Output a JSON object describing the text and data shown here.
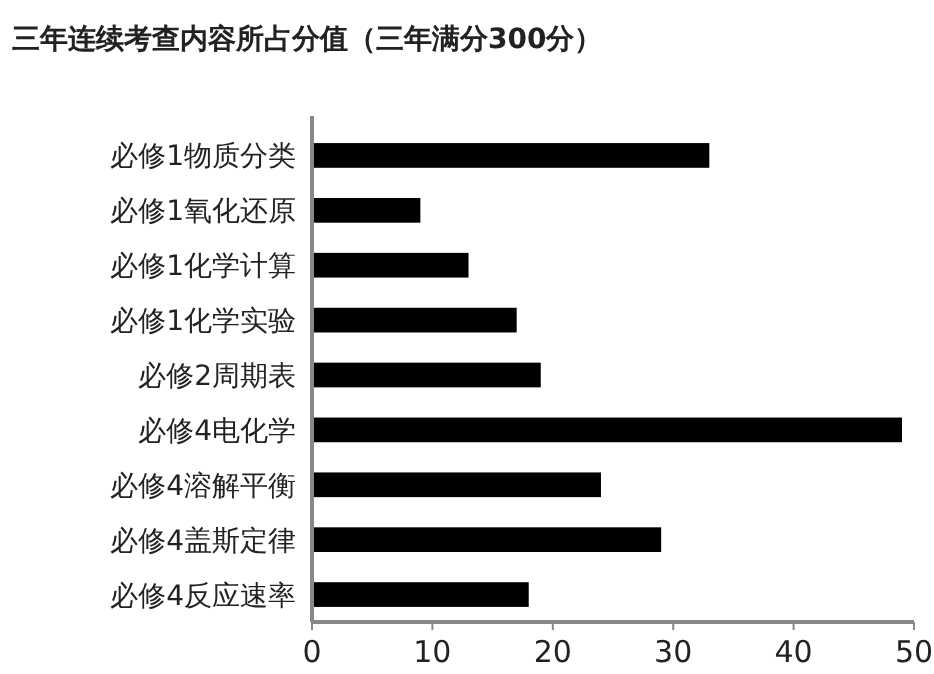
{
  "chart_data": {
    "type": "bar",
    "orientation": "horizontal",
    "title": "三年连续考查内容所占分值（三年满分300分）",
    "categories": [
      "必修1物质分类",
      "必修1氧化还原",
      "必修1化学计算",
      "必修1化学实验",
      "必修2周期表",
      "必修4电化学",
      "必修4溶解平衡",
      "必修4盖斯定律",
      "必修4反应速率"
    ],
    "values": [
      33,
      9,
      13,
      17,
      19,
      49,
      24,
      29,
      18
    ],
    "color": "#000000",
    "xlim": [
      0,
      50
    ],
    "xticks": [
      0,
      10,
      20,
      30,
      40,
      50
    ]
  }
}
